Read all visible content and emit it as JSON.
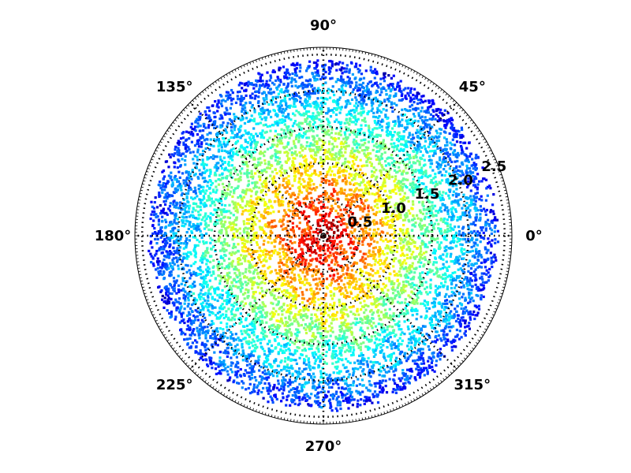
{
  "chart_data": {
    "type": "scatter",
    "projection": "polar",
    "title": "",
    "colormap": "jet",
    "color_encoding": "point density (dense center = red, sparse rim = blue)",
    "series": [
      {
        "description": "dense scatter of points filling the disk, colored by local density",
        "r_range": [
          0,
          2.4
        ],
        "theta_range_deg": [
          0,
          360
        ],
        "density_profile": [
          {
            "r": 0.0,
            "relative_density": 1.0
          },
          {
            "r": 0.5,
            "relative_density": 0.85
          },
          {
            "r": 1.0,
            "relative_density": 0.6
          },
          {
            "r": 1.5,
            "relative_density": 0.4
          },
          {
            "r": 2.0,
            "relative_density": 0.2
          },
          {
            "r": 2.4,
            "relative_density": 0.05
          }
        ]
      }
    ],
    "angle_ticks_deg": [
      0,
      45,
      90,
      135,
      180,
      225,
      270,
      315
    ],
    "angle_tick_labels": [
      "0°",
      "45°",
      "90°",
      "135°",
      "180°",
      "225°",
      "270°",
      "315°"
    ],
    "radial_ticks": [
      0.5,
      1.0,
      1.5,
      2.0,
      2.5
    ],
    "radial_tick_labels": [
      "0.5",
      "1.0",
      "1.5",
      "2.0",
      "2.5"
    ],
    "rlim": [
      0,
      2.6
    ],
    "radial_label_angle_deg": 22.5,
    "grid": true,
    "grid_style": "dotted",
    "colors": {
      "jet": [
        "#00008f",
        "#0000ff",
        "#0080ff",
        "#00ffff",
        "#80ff80",
        "#ffff00",
        "#ff8000",
        "#ff0000",
        "#800000"
      ],
      "grid": "#000000",
      "background": "#ffffff"
    }
  }
}
